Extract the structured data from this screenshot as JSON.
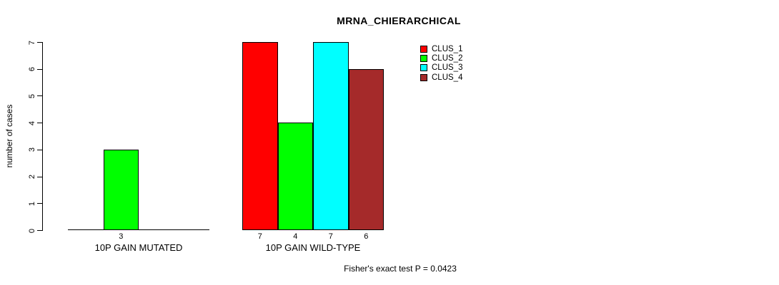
{
  "title": "MRNA_CHIERARCHICAL",
  "y_axis": {
    "label": "number of cases"
  },
  "footer": "Fisher's exact test P = 0.0423",
  "legend": {
    "items": [
      {
        "label": "CLUS_1",
        "color": "#FF0000"
      },
      {
        "label": "CLUS_2",
        "color": "#00FF00"
      },
      {
        "label": "CLUS_3",
        "color": "#00FFFF"
      },
      {
        "label": "CLUS_4",
        "color": "#A52A2A"
      }
    ]
  },
  "chart_data": {
    "type": "bar",
    "title": "MRNA_CHIERARCHICAL",
    "xlabel": "",
    "ylabel": "number of cases",
    "ylim": [
      0,
      7
    ],
    "yticks": [
      0,
      1,
      2,
      3,
      4,
      5,
      6,
      7
    ],
    "grid": false,
    "legend_position": "top-right",
    "series": [
      "CLUS_1",
      "CLUS_2",
      "CLUS_3",
      "CLUS_4"
    ],
    "series_colors": [
      "#FF0000",
      "#00FF00",
      "#00FFFF",
      "#A52A2A"
    ],
    "categories": [
      "10P GAIN MUTATED",
      "10P GAIN WILD-TYPE"
    ],
    "groups": [
      {
        "label": "10P GAIN MUTATED",
        "values": [
          0,
          3,
          0,
          0
        ],
        "bar_labels": [
          "",
          "3",
          "",
          ""
        ]
      },
      {
        "label": "10P GAIN WILD-TYPE",
        "values": [
          7,
          4,
          7,
          6
        ],
        "bar_labels": [
          "7",
          "4",
          "7",
          "6"
        ]
      }
    ],
    "annotation": "Fisher's exact test P = 0.0423"
  }
}
